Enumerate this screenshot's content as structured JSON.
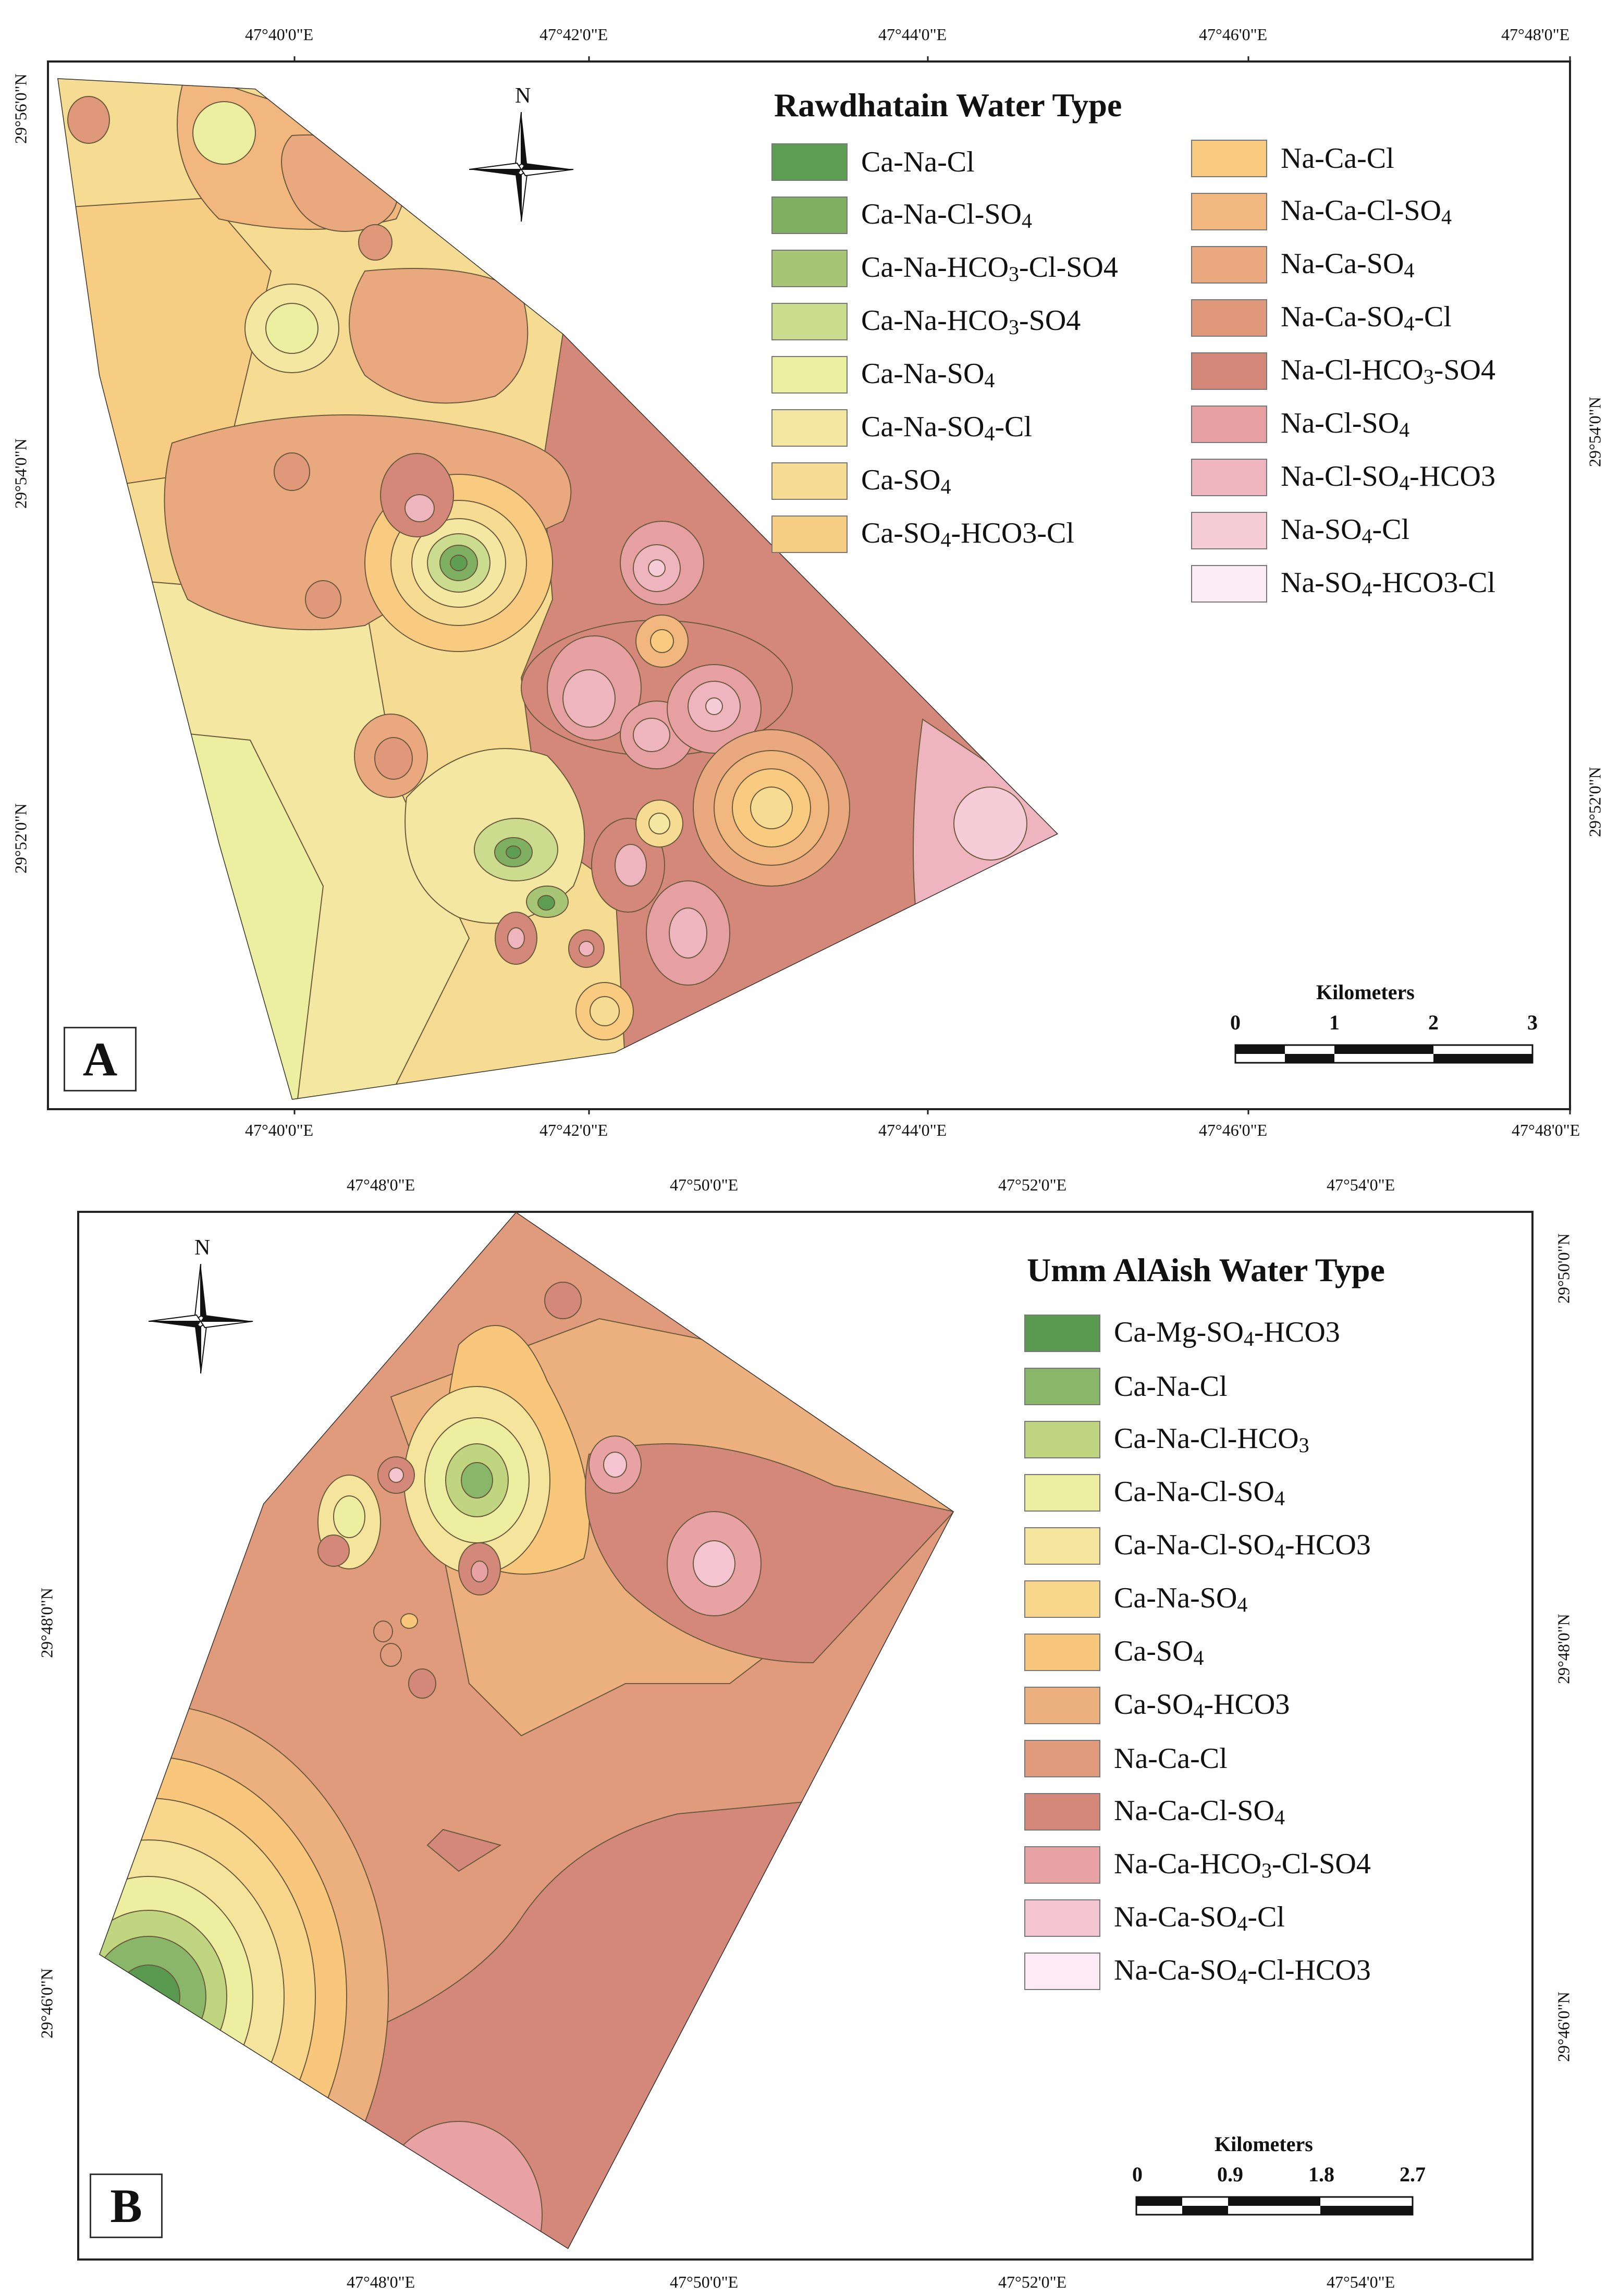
{
  "panel_a": {
    "label": "A",
    "legend_title": "Rawdhatain Water Type",
    "north_label": "N",
    "top_coords": [
      "47°40'0\"E",
      "47°42'0\"E",
      "47°44'0\"E",
      "47°46'0\"E",
      "47°48'0\"E"
    ],
    "bottom_coords": [
      "47°40'0\"E",
      "47°42'0\"E",
      "47°44'0\"E",
      "47°46'0\"E",
      "47°48'0\"E"
    ],
    "left_coords": [
      "29°56'0\"N",
      "29°54'0\"N",
      "29°52'0\"N"
    ],
    "right_coords": [
      "29°54'0\"N",
      "29°52'0\"N"
    ],
    "scale": {
      "title": "Kilometers",
      "ticks": [
        "0",
        "1",
        "2",
        "3"
      ]
    },
    "legend_col1": [
      {
        "base": "Ca-Na-Cl",
        "sub": "",
        "rest": "",
        "color": "#5d9e52"
      },
      {
        "base": "Ca-Na-Cl-SO",
        "sub": "4",
        "rest": "",
        "color": "#7fb062"
      },
      {
        "base": "Ca-Na-HCO",
        "sub": "3",
        "rest": "-Cl-SO4",
        "color": "#a6c575"
      },
      {
        "base": "Ca-Na-HCO",
        "sub": "3",
        "rest": "-SO4",
        "color": "#cbdc8e"
      },
      {
        "base": "Ca-Na-SO",
        "sub": "4",
        "rest": "",
        "color": "#eceea0"
      },
      {
        "base": "Ca-Na-SO",
        "sub": "4",
        "rest": "-Cl",
        "color": "#f3e7a1"
      },
      {
        "base": "Ca-SO",
        "sub": "4",
        "rest": "",
        "color": "#f6dc92"
      },
      {
        "base": "Ca-SO",
        "sub": "4",
        "rest": "-HCO3-Cl",
        "color": "#f7cd83"
      }
    ],
    "legend_col2": [
      {
        "base": "Na-Ca-Cl",
        "sub": "",
        "rest": "",
        "color": "#f8cb80"
      },
      {
        "base": "Na-Ca-Cl-SO",
        "sub": "4",
        "rest": "",
        "color": "#f1b77f"
      },
      {
        "base": "Na-Ca-SO",
        "sub": "4",
        "rest": "",
        "color": "#e9a87d"
      },
      {
        "base": "Na-Ca-SO",
        "sub": "4",
        "rest": "-Cl",
        "color": "#e0987b"
      },
      {
        "base": "Na-Cl-HCO",
        "sub": "3",
        "rest": "-SO4",
        "color": "#d4887a"
      },
      {
        "base": "Na-Cl-SO",
        "sub": "4",
        "rest": "",
        "color": "#e6a0a2"
      },
      {
        "base": "Na-Cl-SO",
        "sub": "4",
        "rest": "-HCO3",
        "color": "#efb5bf"
      },
      {
        "base": "Na-SO",
        "sub": "4",
        "rest": "-Cl",
        "color": "#f6ccd8"
      },
      {
        "base": "Na-SO",
        "sub": "4",
        "rest": "-HCO3-Cl",
        "color": "#fbebf3"
      }
    ]
  },
  "panel_b": {
    "label": "B",
    "legend_title": "Umm AlAish Water Type",
    "north_label": "N",
    "top_coords": [
      "47°48'0\"E",
      "47°50'0\"E",
      "47°52'0\"E",
      "47°54'0\"E"
    ],
    "bottom_coords": [
      "47°48'0\"E",
      "47°50'0\"E",
      "47°52'0\"E",
      "47°54'0\"E"
    ],
    "left_coords": [
      "29°48'0\"N",
      "29°46'0\"N"
    ],
    "right_coords": [
      "29°50'0\"N",
      "29°48'0\"N",
      "29°46'0\"N"
    ],
    "scale": {
      "title": "Kilometers",
      "ticks": [
        "0",
        "0.9",
        "1.8",
        "2.7"
      ]
    },
    "legend": [
      {
        "base": "Ca-Mg-SO",
        "sub": "4",
        "rest": "-HCO3",
        "color": "#5a9a50"
      },
      {
        "base": "Ca-Na-Cl",
        "sub": "",
        "rest": "",
        "color": "#8ab66a"
      },
      {
        "base": "Ca-Na-Cl-HCO",
        "sub": "3",
        "rest": "",
        "color": "#bfd580"
      },
      {
        "base": "Ca-Na-Cl-SO",
        "sub": "4",
        "rest": "",
        "color": "#eeeea0"
      },
      {
        "base": "Ca-Na-Cl-SO",
        "sub": "4",
        "rest": "-HCO3",
        "color": "#f5e49c"
      },
      {
        "base": "Ca-Na-SO",
        "sub": "4",
        "rest": "",
        "color": "#f8d68b"
      },
      {
        "base": "Ca-SO",
        "sub": "4",
        "rest": "",
        "color": "#f8c77b"
      },
      {
        "base": "Ca-SO",
        "sub": "4",
        "rest": "-HCO3",
        "color": "#ebb07d"
      },
      {
        "base": "Na-Ca-Cl",
        "sub": "",
        "rest": "",
        "color": "#e09a7c"
      },
      {
        "base": "Na-Ca-Cl-SO",
        "sub": "4",
        "rest": "",
        "color": "#d4887a"
      },
      {
        "base": "Na-Ca-HCO",
        "sub": "3",
        "rest": "-Cl-SO4",
        "color": "#e8a2a3"
      },
      {
        "base": "Na-Ca-SO",
        "sub": "4",
        "rest": "-Cl",
        "color": "#f4c4d0"
      },
      {
        "base": "Na-Ca-SO",
        "sub": "4",
        "rest": "-Cl-HCO3",
        "color": "#fcebf4"
      }
    ]
  }
}
